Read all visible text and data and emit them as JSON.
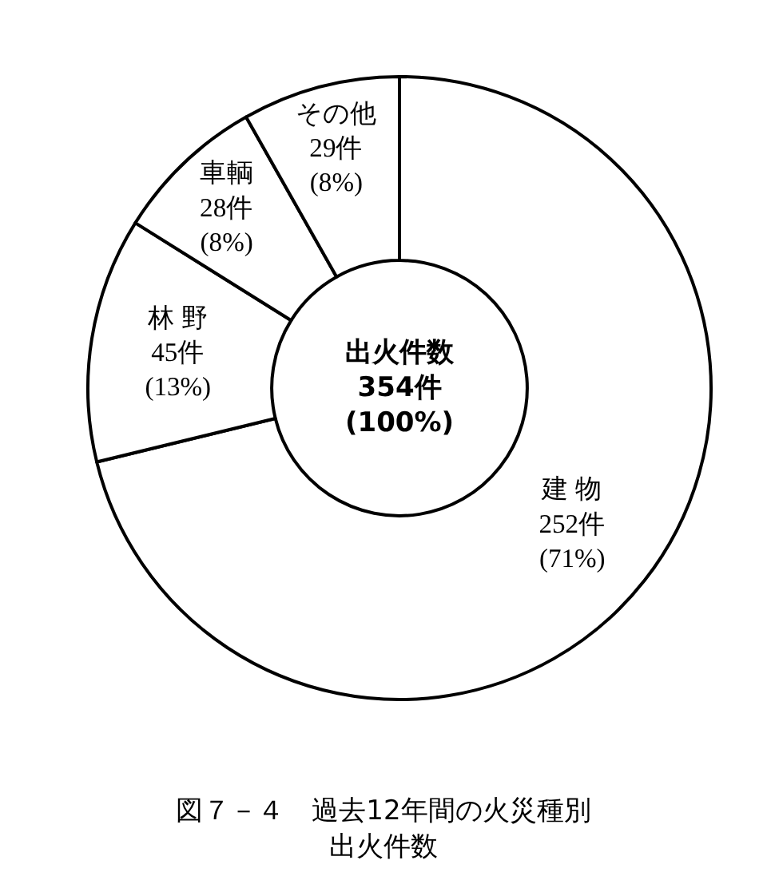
{
  "chart_data": {
    "type": "donut",
    "title": "図７－４　過去12年間の火災種別出火件数",
    "categories": [
      "建 物",
      "林 野",
      "車輌",
      "その他"
    ],
    "values": [
      252,
      45,
      28,
      29
    ],
    "value_labels": [
      "252件\n(71%)",
      "45件\n(13%)",
      "28件\n(8%)",
      "29件\n(8%)"
    ],
    "colors": [
      "#ffffff",
      "#ffffff",
      "#ffffff",
      "#ffffff"
    ],
    "annotations": [
      "出火件数\n354件\n(100%)"
    ],
    "legend": false
  }
}
